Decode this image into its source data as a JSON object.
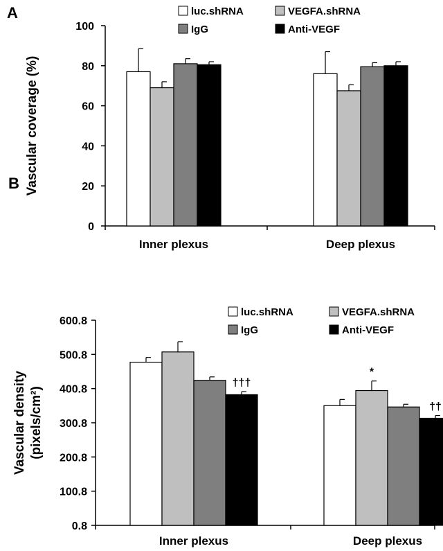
{
  "chart_data": [
    {
      "panel_label": "A",
      "type": "bar",
      "ylabel": "Vascular coverage (%)",
      "ylim": [
        0,
        100
      ],
      "yticks": [
        "0",
        "20",
        "40",
        "60",
        "80",
        "100"
      ],
      "categories": [
        "Inner plexus",
        "Deep plexus"
      ],
      "series": [
        {
          "name": "luc.shRNA",
          "color": "#ffffff",
          "values": [
            77,
            76
          ],
          "errors": [
            11.5,
            11
          ]
        },
        {
          "name": "VEGFA.shRNA",
          "color": "#bfbfbf",
          "values": [
            69,
            67.5
          ],
          "errors": [
            3,
            3
          ]
        },
        {
          "name": "IgG",
          "color": "#7f7f7f",
          "values": [
            81,
            79.5
          ],
          "errors": [
            2.5,
            2
          ]
        },
        {
          "name": "Anti-VEGF",
          "color": "#000000",
          "values": [
            80.5,
            80
          ],
          "errors": [
            1.5,
            2
          ]
        }
      ],
      "annotations": [],
      "legend": "top"
    },
    {
      "panel_label": "B",
      "type": "bar",
      "ylabel_lines": [
        "Vascular density",
        "(pixels/cm²)"
      ],
      "ylim": [
        0.8,
        600.8
      ],
      "yticks": [
        "0.8",
        "100.8",
        "200.8",
        "300.8",
        "400.8",
        "500.8",
        "600.8"
      ],
      "categories": [
        "Inner plexus",
        "Deep plexus"
      ],
      "series": [
        {
          "name": "luc.shRNA",
          "color": "#ffffff",
          "values": [
            478,
            351
          ],
          "errors": [
            14,
            18
          ]
        },
        {
          "name": "VEGFA.shRNA",
          "color": "#bfbfbf",
          "values": [
            508,
            395
          ],
          "errors": [
            30,
            28
          ]
        },
        {
          "name": "IgG",
          "color": "#7f7f7f",
          "values": [
            425,
            347
          ],
          "errors": [
            10,
            8
          ]
        },
        {
          "name": "Anti-VEGF",
          "color": "#000000",
          "values": [
            383,
            314
          ],
          "errors": [
            9,
            8
          ]
        }
      ],
      "annotations": [
        {
          "text": "†††",
          "category": 0,
          "series": 3
        },
        {
          "text": "*",
          "category": 1,
          "series": 1
        },
        {
          "text": "††",
          "category": 1,
          "series": 3
        }
      ],
      "legend": "top-right"
    }
  ]
}
